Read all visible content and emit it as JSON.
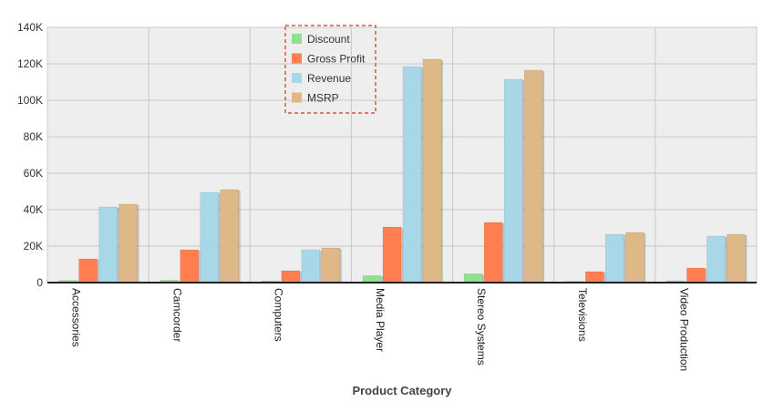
{
  "chart_data": {
    "type": "bar",
    "xlabel": "Product Category",
    "ylabel": "",
    "ylim": [
      0,
      140000
    ],
    "yticks": [
      {
        "value": 0,
        "label": "0"
      },
      {
        "value": 20000,
        "label": "20K"
      },
      {
        "value": 40000,
        "label": "40K"
      },
      {
        "value": 60000,
        "label": "60K"
      },
      {
        "value": 80000,
        "label": "80K"
      },
      {
        "value": 100000,
        "label": "100K"
      },
      {
        "value": 120000,
        "label": "120K"
      },
      {
        "value": 140000,
        "label": "140K"
      }
    ],
    "grid": true,
    "legend_position": "top-center",
    "categories": [
      "Accessories",
      "Camcorder",
      "Computers",
      "Media Player",
      "Stereo Systems",
      "Televisions",
      "Video Production"
    ],
    "series": [
      {
        "name": "Discount",
        "color": "#8ee28e",
        "values": [
          1200,
          1300,
          900,
          3800,
          4800,
          700,
          1000
        ]
      },
      {
        "name": "Gross Profit",
        "color": "#ff7f50",
        "values": [
          13000,
          18000,
          6500,
          30500,
          33000,
          6000,
          8000
        ]
      },
      {
        "name": "Revenue",
        "color": "#a8d8e8",
        "values": [
          41500,
          49500,
          18000,
          118500,
          111500,
          26500,
          25500
        ]
      },
      {
        "name": "MSRP",
        "color": "#deb887",
        "values": [
          43000,
          51000,
          19000,
          122500,
          116500,
          27500,
          26500
        ]
      }
    ]
  }
}
